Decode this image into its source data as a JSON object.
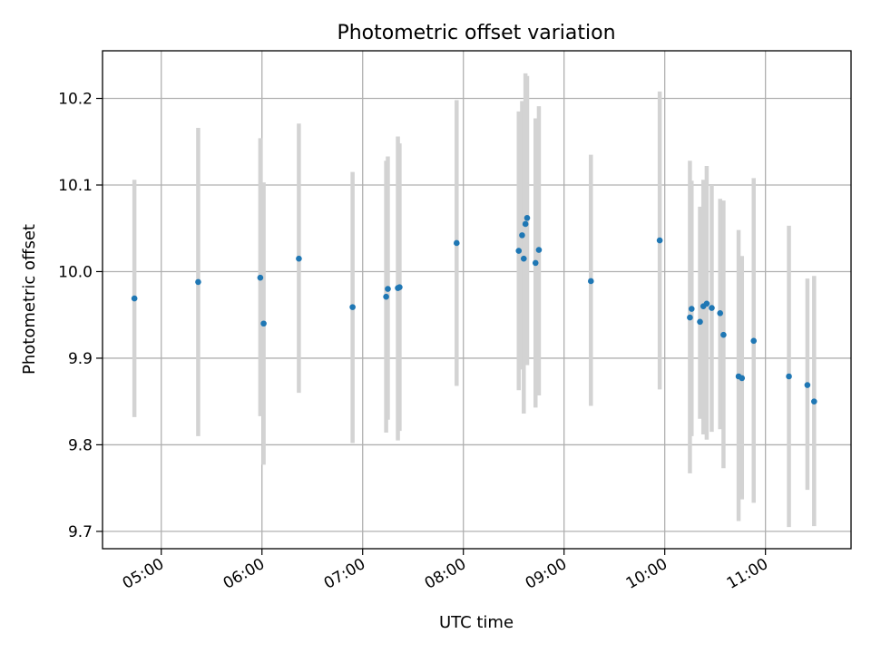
{
  "chart_data": {
    "type": "scatter",
    "title": "Photometric offset variation",
    "xlabel": "UTC time",
    "ylabel": "Photometric offset",
    "xlim": [
      "04:25",
      "11:51"
    ],
    "ylim": [
      9.68,
      10.255
    ],
    "x_ticks": [
      "05:00",
      "06:00",
      "07:00",
      "08:00",
      "09:00",
      "10:00",
      "11:00"
    ],
    "y_ticks": [
      9.7,
      9.8,
      9.9,
      10.0,
      10.1,
      10.2
    ],
    "y_tick_labels": [
      "9.7",
      "9.8",
      "9.9",
      "10.0",
      "10.1",
      "10.2"
    ],
    "grid": true,
    "point_color": "#1f77b4",
    "errorbar_color": "#d3d3d3",
    "points": [
      {
        "x": "04:44",
        "y": 9.969,
        "ylow": 9.832,
        "yhigh": 10.106
      },
      {
        "x": "05:22",
        "y": 9.988,
        "ylow": 9.81,
        "yhigh": 10.166
      },
      {
        "x": "05:59",
        "y": 9.993,
        "ylow": 9.833,
        "yhigh": 10.154
      },
      {
        "x": "06:01",
        "y": 9.94,
        "ylow": 9.777,
        "yhigh": 10.103
      },
      {
        "x": "06:22",
        "y": 10.015,
        "ylow": 9.86,
        "yhigh": 10.171
      },
      {
        "x": "06:54",
        "y": 9.959,
        "ylow": 9.802,
        "yhigh": 10.115
      },
      {
        "x": "07:14",
        "y": 9.971,
        "ylow": 9.814,
        "yhigh": 10.128
      },
      {
        "x": "07:15",
        "y": 9.98,
        "ylow": 9.829,
        "yhigh": 10.133
      },
      {
        "x": "07:21",
        "y": 9.981,
        "ylow": 9.805,
        "yhigh": 10.156
      },
      {
        "x": "07:22",
        "y": 9.982,
        "ylow": 9.816,
        "yhigh": 10.148
      },
      {
        "x": "07:56",
        "y": 10.033,
        "ylow": 9.868,
        "yhigh": 10.198
      },
      {
        "x": "08:33",
        "y": 10.024,
        "ylow": 9.863,
        "yhigh": 10.185
      },
      {
        "x": "08:35",
        "y": 10.042,
        "ylow": 9.887,
        "yhigh": 10.197
      },
      {
        "x": "08:36",
        "y": 10.015,
        "ylow": 9.836,
        "yhigh": 10.193
      },
      {
        "x": "08:37",
        "y": 10.055,
        "ylow": 9.9,
        "yhigh": 10.229
      },
      {
        "x": "08:38",
        "y": 10.062,
        "ylow": 9.892,
        "yhigh": 10.226
      },
      {
        "x": "08:43",
        "y": 10.01,
        "ylow": 9.843,
        "yhigh": 10.177
      },
      {
        "x": "08:45",
        "y": 10.025,
        "ylow": 9.857,
        "yhigh": 10.191
      },
      {
        "x": "09:16",
        "y": 9.989,
        "ylow": 9.845,
        "yhigh": 10.135
      },
      {
        "x": "09:57",
        "y": 10.036,
        "ylow": 9.864,
        "yhigh": 10.208
      },
      {
        "x": "10:15",
        "y": 9.947,
        "ylow": 9.767,
        "yhigh": 10.128
      },
      {
        "x": "10:16",
        "y": 9.957,
        "ylow": 9.81,
        "yhigh": 10.105
      },
      {
        "x": "10:21",
        "y": 9.942,
        "ylow": 9.83,
        "yhigh": 10.075
      },
      {
        "x": "10:23",
        "y": 9.96,
        "ylow": 9.812,
        "yhigh": 10.106
      },
      {
        "x": "10:25",
        "y": 9.963,
        "ylow": 9.806,
        "yhigh": 10.122
      },
      {
        "x": "10:28",
        "y": 9.958,
        "ylow": 9.815,
        "yhigh": 10.1
      },
      {
        "x": "10:33",
        "y": 9.952,
        "ylow": 9.818,
        "yhigh": 10.084
      },
      {
        "x": "10:35",
        "y": 9.927,
        "ylow": 9.773,
        "yhigh": 10.082
      },
      {
        "x": "10:44",
        "y": 9.879,
        "ylow": 9.712,
        "yhigh": 10.048
      },
      {
        "x": "10:46",
        "y": 9.877,
        "ylow": 9.737,
        "yhigh": 10.018
      },
      {
        "x": "10:53",
        "y": 9.92,
        "ylow": 9.733,
        "yhigh": 10.108
      },
      {
        "x": "11:14",
        "y": 9.879,
        "ylow": 9.705,
        "yhigh": 10.053
      },
      {
        "x": "11:25",
        "y": 9.869,
        "ylow": 9.748,
        "yhigh": 9.992
      },
      {
        "x": "11:29",
        "y": 9.85,
        "ylow": 9.706,
        "yhigh": 9.995
      }
    ]
  }
}
